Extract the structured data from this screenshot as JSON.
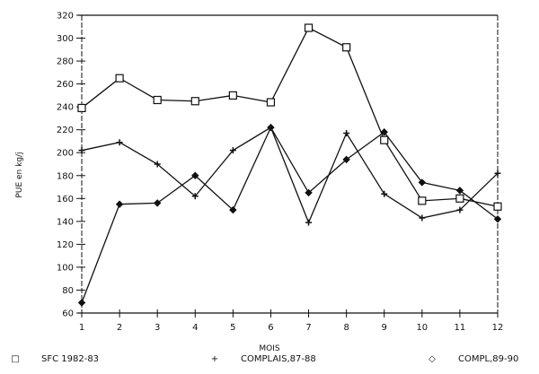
{
  "chart_data": {
    "type": "line",
    "title": "",
    "xlabel": "MOIS",
    "ylabel": "PUE en kg/j",
    "x": [
      1,
      2,
      3,
      4,
      5,
      6,
      7,
      8,
      9,
      10,
      11,
      12
    ],
    "xticks": [
      "1",
      "2",
      "3",
      "4",
      "5",
      "6",
      "7",
      "8",
      "9",
      "10",
      "11",
      "12"
    ],
    "yticks": [
      60,
      80,
      100,
      120,
      140,
      160,
      180,
      200,
      220,
      240,
      260,
      280,
      300,
      320
    ],
    "ylim": [
      60,
      320
    ],
    "xlim": [
      1,
      12
    ],
    "grid": false,
    "legend_position": "bottom",
    "series": [
      {
        "name": "SFC 1982-83",
        "marker": "square",
        "values": [
          239,
          265,
          246,
          245,
          250,
          244,
          309,
          292,
          211,
          158,
          160,
          153
        ]
      },
      {
        "name": "COMPLAIS,87-88",
        "marker": "plus",
        "values": [
          202,
          209,
          190,
          162,
          202,
          222,
          139,
          217,
          164,
          143,
          150,
          182
        ]
      },
      {
        "name": "COMPL,89-90",
        "marker": "diamond",
        "values": [
          69,
          155,
          156,
          180,
          150,
          222,
          165,
          194,
          218,
          174,
          167,
          142
        ]
      }
    ]
  },
  "legend": {
    "items": [
      {
        "symbol": "□",
        "label": "SFC 1982-83"
      },
      {
        "symbol": "+",
        "label": "COMPLAIS,87-88"
      },
      {
        "symbol": "◇",
        "label": "COMPL,89-90"
      }
    ]
  },
  "axes": {
    "x_title": "MOIS",
    "y_title": "PUE en kg/j"
  },
  "colors": {
    "ink": "#111111",
    "background": "#ffffff"
  }
}
